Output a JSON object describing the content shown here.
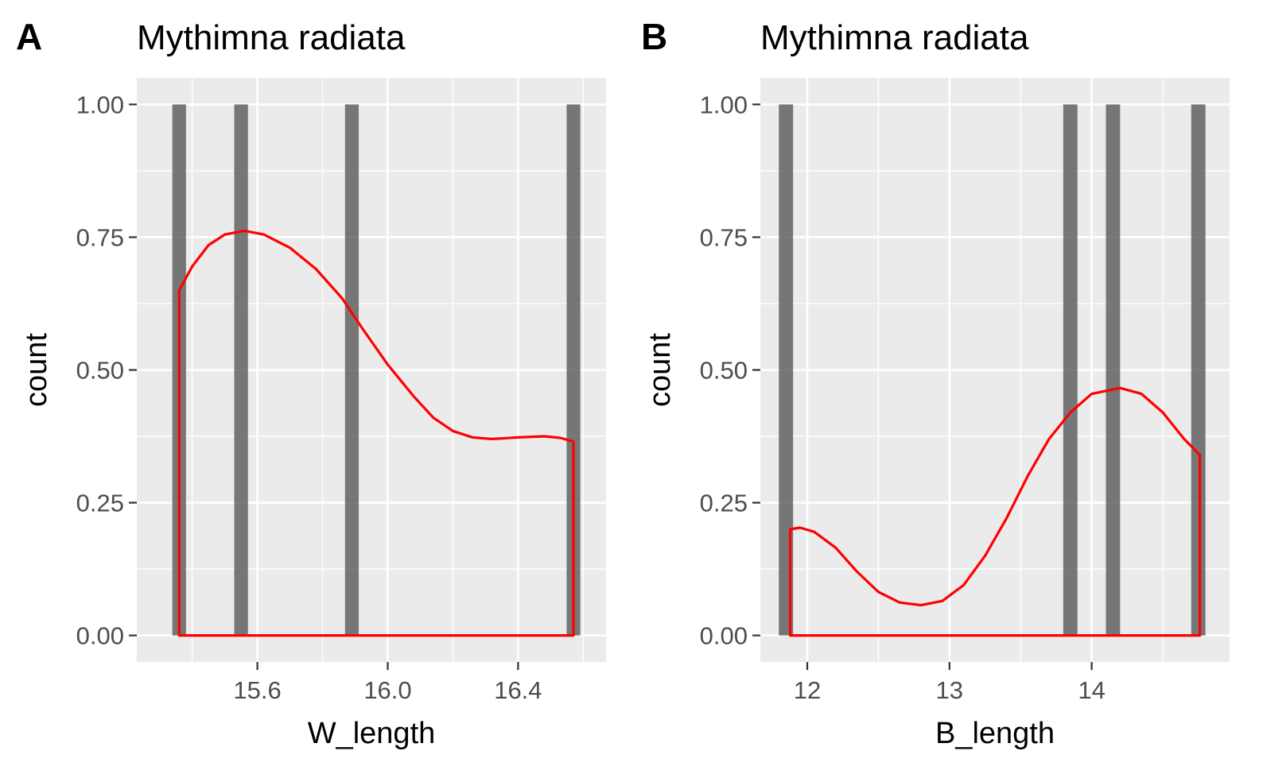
{
  "chart_data": [
    {
      "type": "bar",
      "tag": "A",
      "title": "Mythimna radiata",
      "xlabel": "W_length",
      "ylabel": "count",
      "xlim": [
        15.23,
        16.67
      ],
      "ylim": [
        -0.05,
        1.05
      ],
      "xticks": [
        15.6,
        16.0,
        16.4
      ],
      "xtick_labels": [
        "15.6",
        "16.0",
        "16.4"
      ],
      "xminor": [
        15.4,
        15.8,
        16.2,
        16.6
      ],
      "yticks": [
        0,
        0.25,
        0.5,
        0.75,
        1.0
      ],
      "ytick_labels": [
        "0.00",
        "0.25",
        "0.50",
        "0.75",
        "1.00"
      ],
      "grid": true,
      "bar_width": 0.042,
      "bars": [
        {
          "x": 15.36,
          "count": 1
        },
        {
          "x": 15.55,
          "count": 1
        },
        {
          "x": 15.89,
          "count": 1
        },
        {
          "x": 16.57,
          "count": 1
        }
      ],
      "density": {
        "color": "#ff0000",
        "x_range": [
          15.36,
          16.57
        ],
        "points": [
          [
            15.36,
            0.65
          ],
          [
            15.4,
            0.695
          ],
          [
            15.45,
            0.735
          ],
          [
            15.5,
            0.755
          ],
          [
            15.56,
            0.762
          ],
          [
            15.62,
            0.755
          ],
          [
            15.7,
            0.73
          ],
          [
            15.78,
            0.69
          ],
          [
            15.86,
            0.635
          ],
          [
            15.92,
            0.58
          ],
          [
            16.0,
            0.51
          ],
          [
            16.08,
            0.45
          ],
          [
            16.14,
            0.41
          ],
          [
            16.2,
            0.385
          ],
          [
            16.26,
            0.373
          ],
          [
            16.32,
            0.37
          ],
          [
            16.4,
            0.373
          ],
          [
            16.48,
            0.375
          ],
          [
            16.53,
            0.372
          ],
          [
            16.57,
            0.365
          ]
        ]
      }
    },
    {
      "type": "bar",
      "tag": "B",
      "title": "Mythimna radiata",
      "xlabel": "B_length",
      "ylabel": "count",
      "xlim": [
        11.67,
        14.97
      ],
      "ylim": [
        -0.05,
        1.05
      ],
      "xticks": [
        12,
        13,
        14
      ],
      "xtick_labels": [
        "12",
        "13",
        "14"
      ],
      "xminor": [
        12.5,
        13.5,
        14.5
      ],
      "yticks": [
        0,
        0.25,
        0.5,
        0.75,
        1.0
      ],
      "ytick_labels": [
        "0.00",
        "0.25",
        "0.50",
        "0.75",
        "1.00"
      ],
      "grid": true,
      "bar_width": 0.1,
      "bars": [
        {
          "x": 11.85,
          "count": 1
        },
        {
          "x": 13.85,
          "count": 1
        },
        {
          "x": 14.15,
          "count": 1
        },
        {
          "x": 14.75,
          "count": 1
        }
      ],
      "density": {
        "color": "#ff0000",
        "x_range": [
          11.88,
          14.76
        ],
        "points": [
          [
            11.88,
            0.2
          ],
          [
            11.95,
            0.203
          ],
          [
            12.05,
            0.195
          ],
          [
            12.2,
            0.165
          ],
          [
            12.35,
            0.12
          ],
          [
            12.5,
            0.082
          ],
          [
            12.65,
            0.062
          ],
          [
            12.8,
            0.057
          ],
          [
            12.95,
            0.065
          ],
          [
            13.1,
            0.095
          ],
          [
            13.25,
            0.15
          ],
          [
            13.4,
            0.22
          ],
          [
            13.55,
            0.3
          ],
          [
            13.7,
            0.37
          ],
          [
            13.85,
            0.42
          ],
          [
            14.0,
            0.455
          ],
          [
            14.2,
            0.466
          ],
          [
            14.35,
            0.455
          ],
          [
            14.5,
            0.42
          ],
          [
            14.65,
            0.37
          ],
          [
            14.76,
            0.34
          ]
        ]
      }
    }
  ]
}
